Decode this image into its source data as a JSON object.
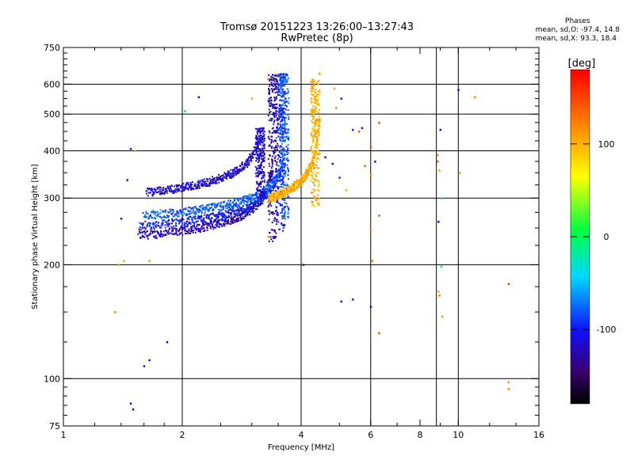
{
  "header": {
    "title_line1": "Tromsø 20151223 13:26:00–13:27:43",
    "title_line2": "RwPretec (8p)"
  },
  "phase_stats": {
    "heading": "Phases",
    "line_o": "mean, sd,O: -97.4, 14.8",
    "line_x": "mean, sd,X:  93.3, 18.4"
  },
  "chart_data": {
    "type": "scatter",
    "xlabel": "Frequency [MHz]",
    "ylabel": "Stationary phase Virtual Height [km]",
    "x_scale": "log",
    "y_scale": "log",
    "xlim": [
      1,
      16
    ],
    "ylim": [
      75,
      750
    ],
    "x_ticks": [
      1,
      2,
      4,
      6,
      8,
      10,
      16
    ],
    "x_tick_labels": [
      "1",
      "2",
      "4",
      "6",
      "8",
      "10",
      "16"
    ],
    "x_grid": [
      2,
      4,
      6,
      8.8,
      10
    ],
    "y_ticks": [
      75,
      100,
      200,
      300,
      400,
      500,
      600,
      750
    ],
    "y_tick_labels": [
      "75",
      "100",
      "200",
      "300",
      "400",
      "500",
      "600",
      "750"
    ],
    "y_grid": [
      100,
      200,
      300,
      400,
      500,
      600
    ],
    "grid": true,
    "colorbar": {
      "label": "[deg]",
      "range": [
        -180,
        180
      ],
      "ticks": [
        100,
        0,
        -100
      ],
      "tick_labels": [
        "100",
        "0",
        "-100"
      ]
    },
    "traces": [
      {
        "name": "",
        "phase": -125,
        "x_start": 1.55,
        "x_end": 3.4,
        "h_start": 230,
        "h_asym": 3.55,
        "h_cap": 640
      },
      {
        "name": "",
        "phase": -100,
        "x_start": 1.55,
        "x_end": 3.55,
        "h_start": 245,
        "h_asym": 3.72,
        "h_cap": 640
      },
      {
        "name": "",
        "phase": -80,
        "x_start": 1.6,
        "x_end": 3.6,
        "h_start": 262,
        "h_asym": 3.8,
        "h_cap": 640
      },
      {
        "name": "",
        "phase": -115,
        "x_start": 1.62,
        "x_end": 3.1,
        "h_start": 300,
        "h_asym": 3.3,
        "h_cap": 460
      },
      {
        "name": "",
        "phase": 100,
        "x_start": 3.3,
        "x_end": 4.45,
        "h_start": 285,
        "h_asym": 4.55,
        "h_cap": 620
      }
    ],
    "scattered_points": [
      {
        "x": 1.48,
        "y": 405,
        "phase": -120
      },
      {
        "x": 1.52,
        "y": 400,
        "phase": 105
      },
      {
        "x": 1.45,
        "y": 335,
        "phase": -110
      },
      {
        "x": 1.4,
        "y": 265,
        "phase": -100
      },
      {
        "x": 1.42,
        "y": 205,
        "phase": 100
      },
      {
        "x": 1.38,
        "y": 200,
        "phase": 110
      },
      {
        "x": 1.65,
        "y": 205,
        "phase": 105
      },
      {
        "x": 1.35,
        "y": 150,
        "phase": 120
      },
      {
        "x": 1.83,
        "y": 125,
        "phase": -120
      },
      {
        "x": 1.65,
        "y": 112,
        "phase": -115
      },
      {
        "x": 1.6,
        "y": 108,
        "phase": -110
      },
      {
        "x": 1.48,
        "y": 86,
        "phase": -125
      },
      {
        "x": 1.5,
        "y": 83,
        "phase": -120
      },
      {
        "x": 2.03,
        "y": 510,
        "phase": -10
      },
      {
        "x": 2.2,
        "y": 555,
        "phase": -120
      },
      {
        "x": 3.0,
        "y": 550,
        "phase": 110
      },
      {
        "x": 3.3,
        "y": 620,
        "phase": 130
      },
      {
        "x": 4.45,
        "y": 640,
        "phase": 110
      },
      {
        "x": 4.85,
        "y": 585,
        "phase": 105
      },
      {
        "x": 5.05,
        "y": 550,
        "phase": -100
      },
      {
        "x": 4.9,
        "y": 520,
        "phase": 120
      },
      {
        "x": 5.4,
        "y": 455,
        "phase": -95
      },
      {
        "x": 5.6,
        "y": 450,
        "phase": 140
      },
      {
        "x": 5.7,
        "y": 460,
        "phase": -105
      },
      {
        "x": 6.0,
        "y": 410,
        "phase": 140
      },
      {
        "x": 6.3,
        "y": 475,
        "phase": 150
      },
      {
        "x": 4.6,
        "y": 385,
        "phase": -100
      },
      {
        "x": 4.8,
        "y": 370,
        "phase": -105
      },
      {
        "x": 5.0,
        "y": 340,
        "phase": -95
      },
      {
        "x": 5.2,
        "y": 315,
        "phase": 100
      },
      {
        "x": 5.8,
        "y": 365,
        "phase": 130
      },
      {
        "x": 6.15,
        "y": 375,
        "phase": -110
      },
      {
        "x": 6.0,
        "y": 345,
        "phase": 110
      },
      {
        "x": 6.0,
        "y": 248,
        "phase": 115
      },
      {
        "x": 6.3,
        "y": 270,
        "phase": 140
      },
      {
        "x": 6.05,
        "y": 205,
        "phase": 120
      },
      {
        "x": 6.0,
        "y": 155,
        "phase": -110
      },
      {
        "x": 6.3,
        "y": 132,
        "phase": 150
      },
      {
        "x": 5.05,
        "y": 160,
        "phase": -110
      },
      {
        "x": 5.4,
        "y": 162,
        "phase": -95
      },
      {
        "x": 4.05,
        "y": 200,
        "phase": -100
      },
      {
        "x": 3.3,
        "y": 237,
        "phase": 105
      },
      {
        "x": 8.85,
        "y": 390,
        "phase": 120
      },
      {
        "x": 8.85,
        "y": 375,
        "phase": 150
      },
      {
        "x": 8.95,
        "y": 355,
        "phase": 105
      },
      {
        "x": 8.9,
        "y": 260,
        "phase": -110
      },
      {
        "x": 9.0,
        "y": 455,
        "phase": -105
      },
      {
        "x": 9.1,
        "y": 300,
        "phase": -10
      },
      {
        "x": 9.05,
        "y": 198,
        "phase": -20
      },
      {
        "x": 8.9,
        "y": 170,
        "phase": 105
      },
      {
        "x": 8.95,
        "y": 166,
        "phase": 120
      },
      {
        "x": 9.1,
        "y": 146,
        "phase": 110
      },
      {
        "x": 10.0,
        "y": 580,
        "phase": -100
      },
      {
        "x": 11.0,
        "y": 555,
        "phase": 120
      },
      {
        "x": 10.1,
        "y": 350,
        "phase": 105
      },
      {
        "x": 13.4,
        "y": 178,
        "phase": 150
      },
      {
        "x": 13.4,
        "y": 98,
        "phase": 110
      },
      {
        "x": 13.4,
        "y": 94,
        "phase": 120
      }
    ]
  }
}
